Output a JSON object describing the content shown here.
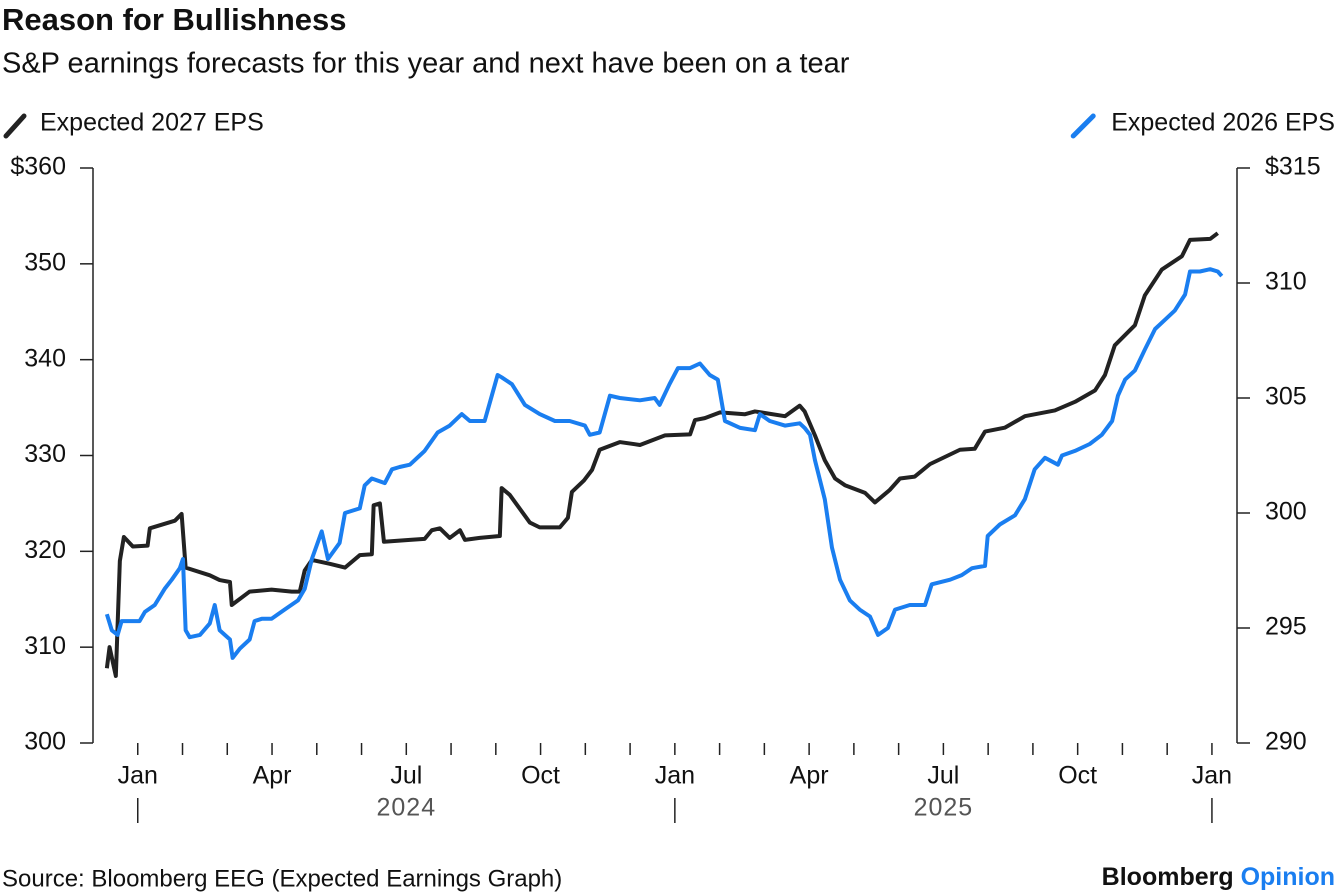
{
  "chart_data": {
    "type": "line",
    "title": "Reason for Bullishness",
    "subtitle": "S&P earnings forecasts for this year and next have been on a tear",
    "source": "Source: Bloomberg EEG (Expected Earnings Graph)",
    "brand": {
      "name": "Bloomberg",
      "suffix": "Opinion"
    },
    "xlim": [
      0,
      25.56
    ],
    "xticks": [
      {
        "value": 1,
        "label": "Jan"
      },
      {
        "value": 4,
        "label": "Apr"
      },
      {
        "value": 7,
        "label": "Jul"
      },
      {
        "value": 10,
        "label": "Oct"
      },
      {
        "value": 13,
        "label": "Jan"
      },
      {
        "value": 16,
        "label": "Apr"
      },
      {
        "value": 19,
        "label": "Jul"
      },
      {
        "value": 22,
        "label": "Oct"
      },
      {
        "value": 25,
        "label": "Jan"
      }
    ],
    "xminorticks": [
      2,
      3,
      5,
      6,
      8,
      9,
      11,
      12,
      14,
      15,
      17,
      18,
      20,
      21,
      23,
      24
    ],
    "xgroups": [
      {
        "value": 7,
        "label": "2024"
      },
      {
        "value": 19,
        "label": "2025"
      }
    ],
    "xgroup_bounds": [
      1,
      13,
      25
    ],
    "ylim": [
      300,
      360
    ],
    "yticks": [
      300,
      310,
      320,
      330,
      340,
      350,
      {
        "value": 360,
        "label": "$360"
      }
    ],
    "y2lim": [
      290,
      315
    ],
    "y2ticks": [
      290,
      295,
      300,
      305,
      310,
      {
        "value": 315,
        "label": "$315"
      }
    ],
    "series": [
      {
        "name": "Expected 2027 EPS",
        "color": "#222222",
        "axis": "y",
        "legend": "left",
        "x": [
          0.31,
          0.37,
          0.51,
          0.6,
          0.69,
          0.89,
          1.22,
          1.27,
          1.83,
          1.98,
          2.07,
          2.61,
          2.83,
          3.06,
          3.1,
          3.5,
          3.99,
          4.44,
          4.62,
          4.73,
          4.89,
          5.29,
          5.63,
          5.96,
          6.23,
          6.27,
          6.41,
          6.5,
          7.08,
          7.41,
          7.57,
          7.75,
          7.97,
          8.2,
          8.31,
          8.64,
          9.09,
          9.13,
          9.31,
          9.76,
          9.98,
          10.43,
          10.61,
          10.7,
          10.97,
          11.15,
          11.32,
          11.77,
          12.22,
          12.78,
          13.34,
          13.45,
          13.67,
          14.01,
          14.56,
          14.79,
          15.46,
          15.79,
          15.9,
          16.13,
          16.35,
          16.58,
          16.8,
          17.25,
          17.47,
          17.8,
          18.03,
          18.36,
          18.7,
          19.37,
          19.7,
          19.93,
          20.37,
          20.82,
          21.49,
          21.94,
          22.39,
          22.61,
          22.83,
          23.28,
          23.5,
          23.88,
          24.33,
          24.51,
          24.96,
          25.13
        ],
        "values": [
          307.8,
          310,
          307,
          319,
          321.5,
          320.5,
          320.6,
          322.4,
          323.2,
          323.9,
          318.3,
          317.5,
          317,
          316.8,
          314.4,
          315.8,
          316,
          315.8,
          315.8,
          318,
          319.1,
          318.7,
          318.3,
          319.6,
          319.7,
          324.8,
          325,
          321,
          321.2,
          321.3,
          322.2,
          322.4,
          321.4,
          322.2,
          321.2,
          321.4,
          321.6,
          326.6,
          325.9,
          323,
          322.5,
          322.5,
          323.5,
          326.2,
          327.4,
          328.5,
          330.6,
          331.4,
          331.1,
          332.1,
          332.2,
          333.7,
          333.9,
          334.5,
          334.3,
          334.6,
          334.1,
          335.2,
          334.6,
          332.1,
          329.5,
          327.6,
          326.9,
          326.1,
          325.1,
          326.4,
          327.6,
          327.8,
          329.1,
          330.6,
          330.7,
          332.5,
          332.9,
          334.1,
          334.7,
          335.6,
          336.8,
          338.4,
          341.5,
          343.6,
          346.7,
          349.4,
          350.8,
          352.5,
          352.6,
          353.2
        ]
      },
      {
        "name": "Expected 2026 EPS",
        "color": "#1a7ef0",
        "axis": "y2",
        "legend": "right",
        "x": [
          0.31,
          0.42,
          0.55,
          0.64,
          0.82,
          1.04,
          1.16,
          1.38,
          1.6,
          1.76,
          1.94,
          2.01,
          2.07,
          2.16,
          2.39,
          2.61,
          2.72,
          2.83,
          3.06,
          3.12,
          3.28,
          3.5,
          3.61,
          3.77,
          3.99,
          4.28,
          4.58,
          4.73,
          4.89,
          5.11,
          5.25,
          5.51,
          5.63,
          5.96,
          6.07,
          6.23,
          6.52,
          6.68,
          6.85,
          7.08,
          7.3,
          7.41,
          7.7,
          7.97,
          8.24,
          8.42,
          8.75,
          8.91,
          9.04,
          9.13,
          9.36,
          9.65,
          9.98,
          10.32,
          10.65,
          10.99,
          11.1,
          11.32,
          11.55,
          11.77,
          12.22,
          12.55,
          12.66,
          12.88,
          13.07,
          13.34,
          13.56,
          13.78,
          13.96,
          14.12,
          14.46,
          14.79,
          14.9,
          15.12,
          15.46,
          15.79,
          15.9,
          16.02,
          16.13,
          16.35,
          16.51,
          16.69,
          16.91,
          17.13,
          17.36,
          17.54,
          17.76,
          17.92,
          18.25,
          18.59,
          18.74,
          19.15,
          19.41,
          19.64,
          19.93,
          19.99,
          20.26,
          20.6,
          20.82,
          21.04,
          21.27,
          21.56,
          21.65,
          21.94,
          22.27,
          22.54,
          22.77,
          22.9,
          23.06,
          23.28,
          23.5,
          23.73,
          23.95,
          24.17,
          24.4,
          24.51,
          24.73,
          24.96,
          25.13,
          25.22
        ],
        "values": [
          295.6,
          294.9,
          294.7,
          295.3,
          295.3,
          295.3,
          295.7,
          296,
          296.7,
          297.1,
          297.6,
          298,
          294.9,
          294.6,
          294.7,
          295.2,
          296,
          294.9,
          294.5,
          293.7,
          294.1,
          294.5,
          295.3,
          295.4,
          295.4,
          295.8,
          296.2,
          296.7,
          298,
          299.2,
          298,
          298.7,
          300,
          300.2,
          301.2,
          301.5,
          301.3,
          301.9,
          302,
          302.1,
          302.5,
          302.7,
          303.5,
          303.8,
          304.3,
          304,
          304,
          305.1,
          306,
          305.9,
          305.6,
          304.7,
          304.3,
          304,
          304,
          303.8,
          303.4,
          303.5,
          305.1,
          305,
          304.9,
          305,
          304.7,
          305.6,
          306.3,
          306.3,
          306.5,
          306,
          305.8,
          304,
          303.7,
          303.6,
          304.3,
          304,
          303.8,
          303.9,
          303.7,
          303.4,
          302.3,
          300.6,
          298.5,
          297.1,
          296.2,
          295.8,
          295.5,
          294.7,
          295,
          295.8,
          296,
          296,
          296.9,
          297.1,
          297.3,
          297.6,
          297.7,
          299,
          299.5,
          299.9,
          300.6,
          301.9,
          302.4,
          302.1,
          302.5,
          302.7,
          303,
          303.4,
          304,
          305.1,
          305.8,
          306.2,
          307.1,
          308,
          308.4,
          308.8,
          309.5,
          310.5,
          310.5,
          310.6,
          310.5,
          310.3
        ]
      }
    ]
  }
}
